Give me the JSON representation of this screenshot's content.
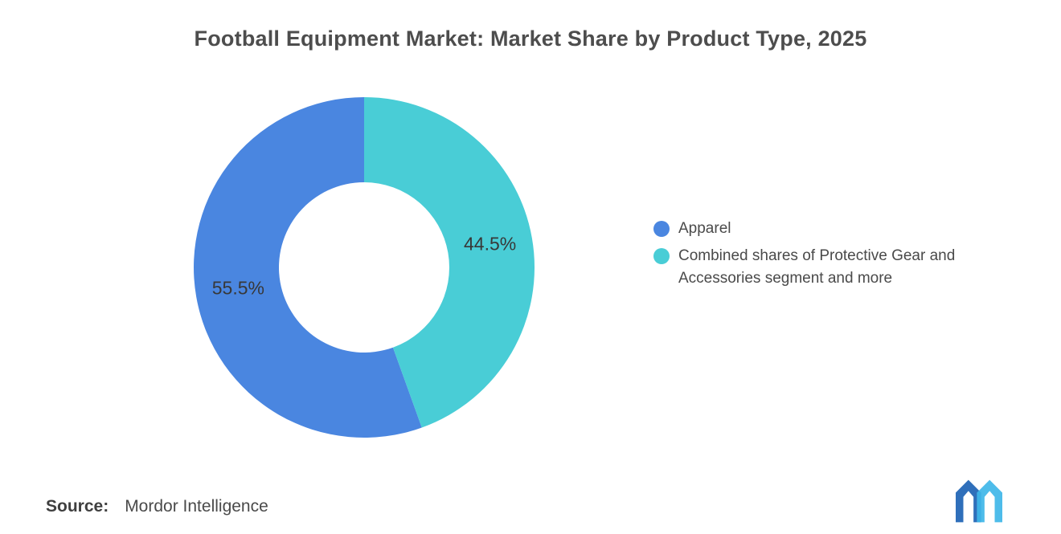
{
  "chart_data": {
    "type": "pie",
    "subtype": "donut",
    "title": "Football Equipment Market: Market Share by Product Type, 2025",
    "labels": [
      "Apparel",
      "Combined shares of Protective Gear and Accessories segment and more"
    ],
    "values": [
      55.5,
      44.5
    ],
    "value_labels": [
      "55.5%",
      "44.5%"
    ],
    "colors": [
      "#4a86e0",
      "#49cdd6"
    ],
    "start_angle_deg": 0,
    "direction": "counterclockwise",
    "inner_radius_ratio": 0.5,
    "legend_position": "right",
    "label_color": "#383838"
  },
  "footer": {
    "source_label": "Source:",
    "source_value": "Mordor Intelligence"
  },
  "logo": {
    "name": "Mordor Intelligence logo",
    "color_dark": "#2f6fba",
    "color_light": "#3fb6e8"
  }
}
